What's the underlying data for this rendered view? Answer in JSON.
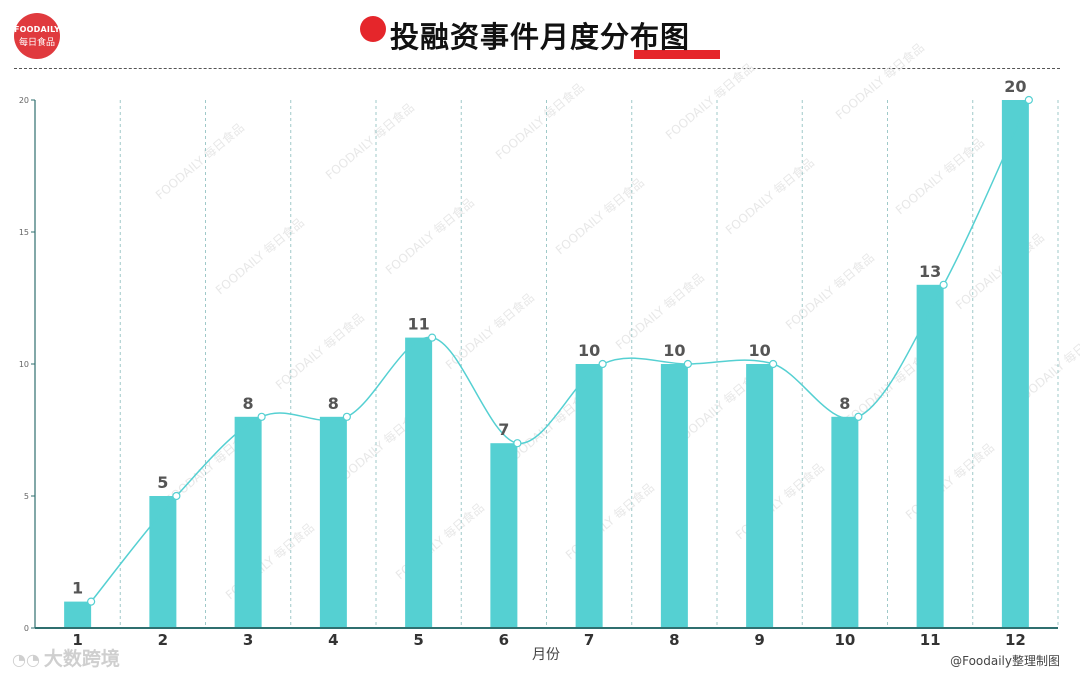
{
  "logo": {
    "line1": "FOODAILY",
    "line2": "每日食品"
  },
  "header": {
    "title": "投融资事件月度分布图"
  },
  "footer": {
    "left_text": "大数跨境",
    "right_text": "@Foodaily整理制图"
  },
  "colors": {
    "bar": "#55d0d2",
    "line": "#55d0d2",
    "axis": "#2f6f6f",
    "title_accent": "#e5262b"
  },
  "chart_data": {
    "type": "bar",
    "categories": [
      "1",
      "2",
      "3",
      "4",
      "5",
      "6",
      "7",
      "8",
      "9",
      "10",
      "11",
      "12"
    ],
    "values": [
      1,
      5,
      8,
      8,
      11,
      7,
      10,
      10,
      10,
      8,
      13,
      20
    ],
    "data_labels": [
      "1",
      "5",
      "8",
      "8",
      "11",
      "7",
      "10",
      "10",
      "10",
      "8",
      "13",
      "20"
    ],
    "overlay": "smooth-line",
    "xlabel": "月份",
    "ylabel": "",
    "ylim": [
      0,
      20
    ],
    "yticks": [
      0,
      5,
      10,
      15,
      20
    ],
    "ytick_labels": [
      "0",
      "5",
      "10",
      "15",
      "20"
    ],
    "grid": "vertical-dashed",
    "watermark": "FOODAILY 每日食品"
  }
}
